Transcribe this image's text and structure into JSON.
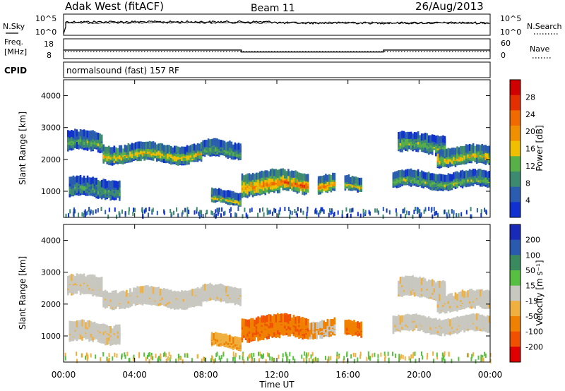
{
  "header": {
    "station": "Adak West (fitACF)",
    "beam": "Beam 11",
    "date": "26/Aug/2013"
  },
  "top_panel": {
    "nsky_label": "N.Sky",
    "nsearch_label": "N.Search",
    "left_ticks": [
      "10^5",
      "10^0"
    ],
    "right_ticks": [
      "10^5",
      "10^0"
    ]
  },
  "freq_panel": {
    "label_line1": "Freq.",
    "label_line2": "[MHz]",
    "nave_label": "Nave",
    "left_ticks": [
      "18",
      "8"
    ],
    "right_ticks": [
      "60",
      "0"
    ],
    "steps": [
      {
        "from_hour": 0,
        "to_hour": 10,
        "freq_mhz": 11.9
      },
      {
        "from_hour": 10,
        "to_hour": 18,
        "freq_mhz": 10.4
      },
      {
        "from_hour": 18,
        "to_hour": 24,
        "freq_mhz": 11.9
      }
    ]
  },
  "cpid_panel": {
    "label": "CPID",
    "text": "normalsound (fast) 157 RF"
  },
  "chart_data": [
    {
      "type": "heatmap",
      "title": "",
      "ylabel": "Slant Range [km]",
      "xlabel": "",
      "xlim_hours": [
        0,
        24
      ],
      "ylim_km": [
        180,
        4500
      ],
      "yticks": [
        "1000",
        "2000",
        "3000",
        "4000"
      ],
      "colorbar_label": "Power [dB]",
      "colorbar_ticks": [
        "28",
        "24",
        "20",
        "16",
        "12",
        "8",
        "4"
      ],
      "colors": [
        "#1030d0",
        "#2a5cb0",
        "#3c8a70",
        "#58b048",
        "#f0c000",
        "#f09000",
        "#f06a00",
        "#e43000",
        "#d00000"
      ],
      "regions": [
        {
          "from": 0.2,
          "to": 2.2,
          "center_km": 2550,
          "width_km": 420,
          "level": 0.35
        },
        {
          "from": 2.2,
          "to": 7.8,
          "center_km": 2200,
          "width_km": 360,
          "level": 0.55
        },
        {
          "from": 7.8,
          "to": 10.0,
          "center_km": 2300,
          "width_km": 320,
          "level": 0.35
        },
        {
          "from": 0.3,
          "to": 3.2,
          "center_km": 1100,
          "width_km": 400,
          "level": 0.3
        },
        {
          "from": 8.3,
          "to": 10.0,
          "center_km": 800,
          "width_km": 200,
          "level": 0.5
        },
        {
          "from": 10.0,
          "to": 12.2,
          "center_km": 1250,
          "width_km": 520,
          "level": 0.7
        },
        {
          "from": 12.2,
          "to": 13.8,
          "center_km": 1300,
          "width_km": 450,
          "level": 0.8
        },
        {
          "from": 14.3,
          "to": 15.3,
          "center_km": 1250,
          "width_km": 350,
          "level": 0.7
        },
        {
          "from": 15.8,
          "to": 16.8,
          "center_km": 1200,
          "width_km": 250,
          "level": 0.5
        },
        {
          "from": 18.8,
          "to": 21.5,
          "center_km": 2500,
          "width_km": 400,
          "level": 0.4
        },
        {
          "from": 21.0,
          "to": 24.0,
          "center_km": 2100,
          "width_km": 380,
          "level": 0.55
        },
        {
          "from": 18.5,
          "to": 24.0,
          "center_km": 1350,
          "width_km": 300,
          "level": 0.4
        }
      ]
    },
    {
      "type": "heatmap",
      "title": "",
      "ylabel": "Slant Range [km]",
      "xlabel": "Time UT",
      "xlim_hours": [
        0,
        24
      ],
      "ylim_km": [
        180,
        4500
      ],
      "xticks": [
        "00:00",
        "04:00",
        "08:00",
        "12:00",
        "16:00",
        "20:00",
        "00:00"
      ],
      "yticks": [
        "1000",
        "2000",
        "3000",
        "4000"
      ],
      "colorbar_label": "Velocity [m s⁻¹]",
      "colorbar_ticks": [
        "200",
        "100",
        "50",
        "15",
        "-15",
        "-50",
        "-100",
        "-200"
      ],
      "colors": [
        "#e00000",
        "#f05000",
        "#f08000",
        "#f0b040",
        "#c8c8c0",
        "#58c040",
        "#3a8a60",
        "#2a5ab0",
        "#1a2ab8"
      ],
      "regions": [
        {
          "from": 0.2,
          "to": 2.2,
          "center_km": 2550,
          "width_km": 420,
          "tone": "gray"
        },
        {
          "from": 2.2,
          "to": 7.8,
          "center_km": 2200,
          "width_km": 360,
          "tone": "gray"
        },
        {
          "from": 7.8,
          "to": 10.0,
          "center_km": 2300,
          "width_km": 320,
          "tone": "gray"
        },
        {
          "from": 0.3,
          "to": 3.2,
          "center_km": 1100,
          "width_km": 400,
          "tone": "gray"
        },
        {
          "from": 8.3,
          "to": 10.0,
          "center_km": 820,
          "width_km": 200,
          "tone": "lightorange"
        },
        {
          "from": 10.0,
          "to": 12.2,
          "center_km": 1250,
          "width_km": 520,
          "tone": "orange"
        },
        {
          "from": 12.2,
          "to": 13.8,
          "center_km": 1300,
          "width_km": 450,
          "tone": "orange"
        },
        {
          "from": 13.8,
          "to": 15.3,
          "center_km": 1250,
          "width_km": 320,
          "tone": "mixed"
        },
        {
          "from": 15.8,
          "to": 16.8,
          "center_km": 1200,
          "width_km": 250,
          "tone": "orange"
        },
        {
          "from": 18.8,
          "to": 21.5,
          "center_km": 2500,
          "width_km": 400,
          "tone": "gray"
        },
        {
          "from": 21.0,
          "to": 24.0,
          "center_km": 2100,
          "width_km": 380,
          "tone": "gray"
        },
        {
          "from": 18.5,
          "to": 24.0,
          "center_km": 1350,
          "width_km": 300,
          "tone": "gray"
        }
      ]
    }
  ]
}
